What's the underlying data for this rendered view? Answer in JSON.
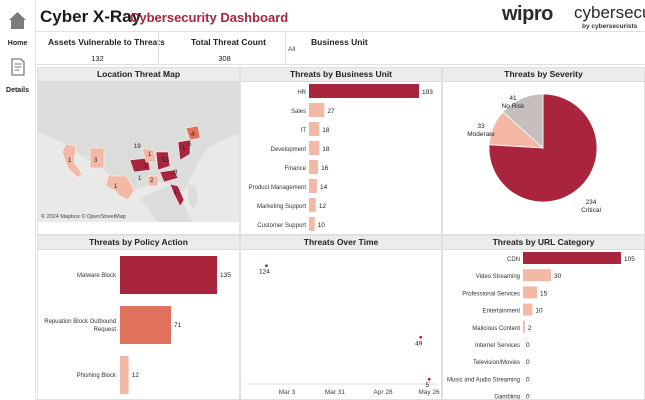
{
  "nav": {
    "home_label": "Home",
    "details_label": "Details"
  },
  "header": {
    "title": "Cyber X-Ray",
    "subtitle": "Cybersecurity Dashboard",
    "logo_wordmark": "wipro",
    "logo_product": "cybersecurity",
    "logo_by": "by cybersecurists"
  },
  "kpis": {
    "assets_label": "Assets Vulnerable to Threats",
    "assets_value": "132",
    "threats_label": "Total Threat Count",
    "threats_value": "308",
    "bu_label": "Business Unit",
    "bu_value": "All"
  },
  "colors": {
    "accent": "#a8253d",
    "mid": "#e0715c",
    "light": "#f3b9a6",
    "neutral": "#c7bfbd",
    "header_bg": "#ececec"
  },
  "map": {
    "title": "Location Threat Map",
    "attribution": "© 2024 Mapbox © OpenStreetMap",
    "labels": [
      "1",
      "3",
      "19",
      "1",
      "1",
      "53",
      "1",
      "1",
      "2",
      "8",
      "1",
      "5",
      "4",
      "1"
    ]
  },
  "chart_data": [
    {
      "type": "bar",
      "title": "Threats by Business Unit",
      "categories": [
        "HR",
        "Sales",
        "IT",
        "Development",
        "Finance",
        "Product Management",
        "Marketing Support",
        "Customer Support"
      ],
      "values": [
        193,
        27,
        18,
        18,
        16,
        14,
        12,
        10
      ]
    },
    {
      "type": "pie",
      "title": "Threats by Severity",
      "categories": [
        "Critical",
        "Moderate",
        "No Risk"
      ],
      "values": [
        234,
        33,
        41
      ]
    },
    {
      "type": "bar",
      "title": "Threats by Policy Action",
      "categories": [
        "Malware Block",
        "Repuation Block Outbound Request",
        "Phishing Block"
      ],
      "values": [
        135,
        71,
        12
      ]
    },
    {
      "type": "scatter",
      "title": "Threats Over Time",
      "x": [
        "Feb 20",
        "May 20",
        "May 25"
      ],
      "y": [
        124,
        49,
        5
      ],
      "x_ticks": [
        "Mar 3",
        "Mar 31",
        "Apr 28",
        "May 26"
      ]
    },
    {
      "type": "bar",
      "title": "Threats by URL Category",
      "categories": [
        "CDN",
        "Video Streaming",
        "Professional Services",
        "Entertainment",
        "Malicious Content",
        "Internet Services",
        "Television/Movies",
        "Music and Audio Streaming",
        "Gambling"
      ],
      "values": [
        105,
        30,
        15,
        10,
        2,
        0,
        0,
        0,
        0
      ]
    }
  ]
}
